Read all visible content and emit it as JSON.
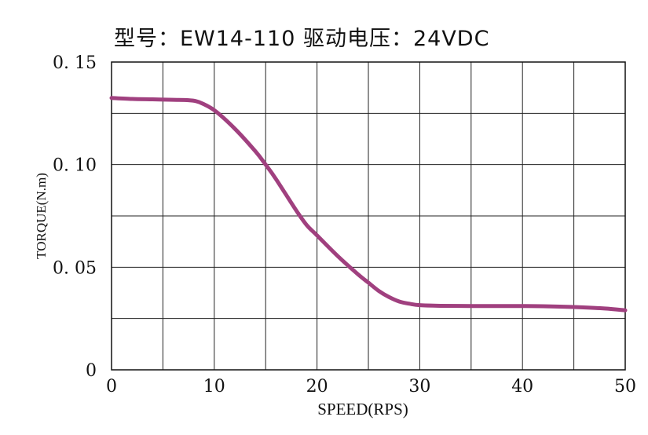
{
  "chart_data": {
    "type": "line",
    "title": "型号：EW14-110   驱动电压：24VDC",
    "xlabel": "SPEED(RPS)",
    "ylabel": "TORQUE(N.m)",
    "xlim": [
      0,
      50
    ],
    "ylim": [
      0,
      0.15
    ],
    "x_ticks": [
      0,
      10,
      20,
      30,
      40,
      50
    ],
    "x_tick_labels": [
      "0",
      "10",
      "20",
      "30",
      "40",
      "50"
    ],
    "y_ticks": [
      0,
      0.05,
      0.1,
      0.15
    ],
    "y_tick_labels": [
      "0",
      "0. 05",
      "0. 10",
      "0. 15"
    ],
    "grid": true,
    "grid_x_step": 5,
    "grid_y_step": 0.025,
    "series": [
      {
        "color": "#a0407f",
        "x": [
          0,
          2,
          4,
          6,
          7.5,
          8.5,
          10,
          12,
          14,
          15,
          16,
          18,
          19,
          20,
          22,
          24,
          25,
          26,
          27,
          28,
          29,
          30,
          32,
          35,
          38,
          40,
          42,
          45,
          48,
          50
        ],
        "y": [
          0.1325,
          0.132,
          0.1318,
          0.1316,
          0.1314,
          0.1305,
          0.1265,
          0.1175,
          0.1065,
          0.1,
          0.093,
          0.0775,
          0.0705,
          0.0655,
          0.0555,
          0.0465,
          0.0425,
          0.0385,
          0.0355,
          0.0333,
          0.0322,
          0.0315,
          0.0312,
          0.0311,
          0.0311,
          0.0311,
          0.031,
          0.0306,
          0.0299,
          0.029
        ]
      }
    ]
  }
}
